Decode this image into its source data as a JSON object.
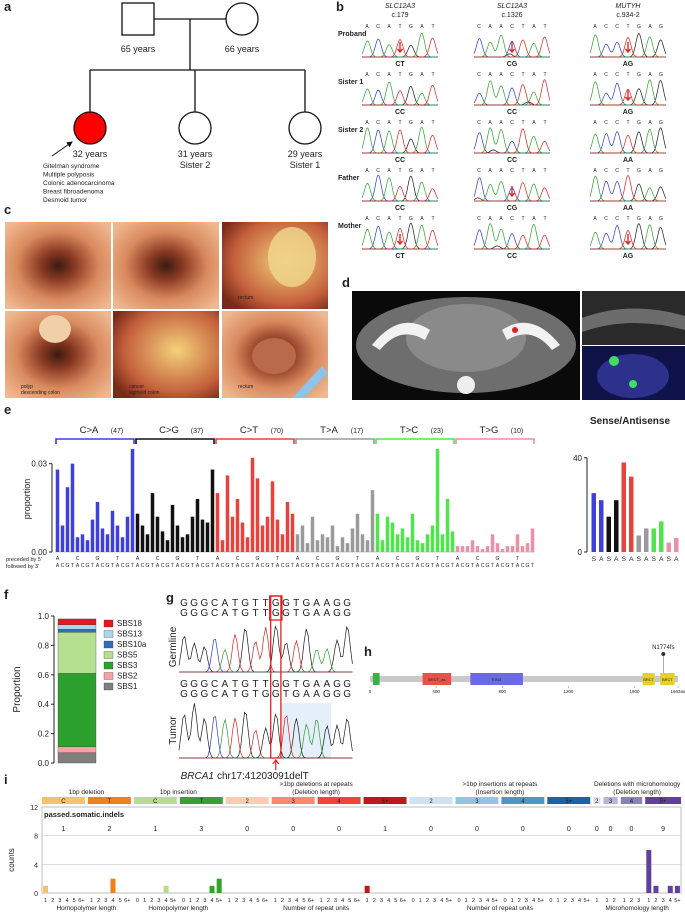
{
  "panel_labels": [
    "a",
    "b",
    "c",
    "d",
    "e",
    "f",
    "g",
    "h",
    "i"
  ],
  "pedigree": {
    "father": "65 years",
    "mother": "66 years",
    "proband": {
      "age": "32 years",
      "color": "#ff0000",
      "features": [
        "Gitelman syndrome",
        "Multiple polyposis",
        "Colonic adenocarcinoma",
        "Breast fibroadenoma",
        "Desmoid tumor"
      ]
    },
    "siblings": [
      {
        "age": "31 years",
        "name": "Sister 2"
      },
      {
        "age": "29 years",
        "name": "Sister 1"
      }
    ]
  },
  "base_colors": {
    "G": "#1a1a1a",
    "C": "#2a3bd6",
    "A": "#2e9e2e",
    "T": "#e02020"
  },
  "sanger": {
    "columns": [
      {
        "gene": "SLC12A3",
        "variant": "c.179",
        "sequence": "ACATGAT"
      },
      {
        "gene": "SLC12A3",
        "variant": "c.1326",
        "sequence": "CAACTAT"
      },
      {
        "gene": "MUTYH",
        "variant": "c.934-2",
        "sequence": "ACCTGAG"
      }
    ],
    "rows": [
      {
        "name": "Proband",
        "genotypes": [
          {
            "text": "CT",
            "color": "#e8241f"
          },
          {
            "text": "CG",
            "color": "#e8241f"
          },
          {
            "text": "AG",
            "color": "#e8241f"
          }
        ]
      },
      {
        "name": "Sister 1",
        "genotypes": [
          {
            "text": "CC",
            "color": "#111111"
          },
          {
            "text": "CC",
            "color": "#111111"
          },
          {
            "text": "AG",
            "color": "#e8241f"
          }
        ]
      },
      {
        "name": "Sister 2",
        "genotypes": [
          {
            "text": "CC",
            "color": "#111111"
          },
          {
            "text": "CC",
            "color": "#111111"
          },
          {
            "text": "AA",
            "color": "#111111"
          }
        ]
      },
      {
        "name": "Father",
        "genotypes": [
          {
            "text": "CC",
            "color": "#111111"
          },
          {
            "text": "CG",
            "color": "#e8241f"
          },
          {
            "text": "AA",
            "color": "#111111"
          }
        ]
      },
      {
        "name": "Mother",
        "genotypes": [
          {
            "text": "CT",
            "color": "#e8241f"
          },
          {
            "text": "CC",
            "color": "#111111"
          },
          {
            "text": "AG",
            "color": "#e8241f"
          }
        ]
      }
    ]
  },
  "endoscopy_captions": [
    [],
    [],
    [
      "rectum"
    ],
    [
      "polyp",
      "descending colon"
    ],
    [
      "cancer",
      "sigmoid colon"
    ],
    [
      "rectum"
    ]
  ],
  "chart_data": [
    {
      "type": "context_bar",
      "ylabel": "proportion",
      "ylim": [
        0,
        0.036
      ],
      "yticks": [
        {
          "value": 0,
          "label": "0.00"
        },
        {
          "value": 0.03,
          "label": "0.03"
        }
      ],
      "five_prime": [
        "A",
        "C",
        "G",
        "T"
      ],
      "three_prime": [
        "A",
        "C",
        "G",
        "T"
      ],
      "five_prime_label": "preceded by 5'",
      "three_prime_label": "followed by 3'",
      "groups": [
        {
          "name": "C>A",
          "count_label": "(47)",
          "color": "#3f3fdd",
          "values": [
            0.028,
            0.009,
            0.022,
            0.03,
            0.005,
            0.006,
            0.004,
            0.011,
            0.017,
            0.008,
            0.006,
            0.014,
            0.009,
            0.005,
            0.012,
            0.035
          ]
        },
        {
          "name": "C>G",
          "count_label": "(37)",
          "color": "#111111",
          "values": [
            0.013,
            0.009,
            0.006,
            0.02,
            0.012,
            0.007,
            0.004,
            0.016,
            0.009,
            0.005,
            0.006,
            0.012,
            0.018,
            0.011,
            0.01,
            0.028
          ]
        },
        {
          "name": "C>T",
          "count_label": "(70)",
          "color": "#e8423f",
          "values": [
            0.02,
            0.004,
            0.026,
            0.012,
            0.018,
            0.01,
            0.005,
            0.032,
            0.025,
            0.009,
            0.012,
            0.024,
            0.011,
            0.006,
            0.017,
            0.013
          ]
        },
        {
          "name": "T>A",
          "count_label": "(17)",
          "color": "#9a9a9a",
          "values": [
            0.006,
            0.009,
            0.003,
            0.012,
            0.004,
            0.006,
            0.005,
            0.009,
            0.002,
            0.005,
            0.003,
            0.008,
            0.013,
            0.006,
            0.004,
            0.021
          ]
        },
        {
          "name": "T>C",
          "count_label": "(23)",
          "color": "#4ee64a",
          "values": [
            0.013,
            0.004,
            0.012,
            0.01,
            0.006,
            0.008,
            0.005,
            0.013,
            0.004,
            0.003,
            0.006,
            0.009,
            0.035,
            0.006,
            0.018,
            0.007
          ]
        },
        {
          "name": "T>G",
          "count_label": "(10)",
          "color": "#ec8fa8",
          "values": [
            0.002,
            0.002,
            0.002,
            0.004,
            0.002,
            0.001,
            0.002,
            0.006,
            0.003,
            0.001,
            0.002,
            0.002,
            0.006,
            0.002,
            0.003,
            0.008
          ]
        }
      ]
    },
    {
      "type": "bar",
      "title": "Sense/Antisense",
      "ylim": [
        0,
        45
      ],
      "yticks": [
        0,
        40
      ],
      "categories": [
        "S",
        "A",
        "S",
        "A",
        "S",
        "A",
        "S",
        "A",
        "S",
        "A",
        "S",
        "A"
      ],
      "values": [
        25,
        22,
        15,
        22,
        38,
        32,
        7,
        10,
        10,
        13,
        4,
        6
      ],
      "colors": [
        "#3f3fdd",
        "#3f3fdd",
        "#111111",
        "#111111",
        "#e8423f",
        "#e8423f",
        "#9a9a9a",
        "#9a9a9a",
        "#4ee64a",
        "#4ee64a",
        "#ec8fa8",
        "#ec8fa8"
      ]
    },
    {
      "type": "stacked_bar",
      "ylabel": "Proportion",
      "ylim": [
        0,
        1
      ],
      "yticks": [
        {
          "value": 0,
          "label": "0.0"
        },
        0.2,
        0.4,
        0.6,
        0.8,
        {
          "value": 1,
          "label": "1.0"
        }
      ],
      "series": [
        {
          "name": "SBS1",
          "color": "#7f7f7f",
          "values": [
            0.07
          ]
        },
        {
          "name": "SBS2",
          "color": "#f4a3a3",
          "values": [
            0.04
          ]
        },
        {
          "name": "SBS3",
          "color": "#2ca02c",
          "values": [
            0.5
          ]
        },
        {
          "name": "SBS5",
          "color": "#b5e08f",
          "values": [
            0.28
          ]
        },
        {
          "name": "SBS10a",
          "color": "#2f6fb7",
          "values": [
            0.02
          ]
        },
        {
          "name": "SBS13",
          "color": "#a9d6ef",
          "values": [
            0.03
          ]
        },
        {
          "name": "SBS18",
          "color": "#e31a1c",
          "values": [
            0.04
          ]
        }
      ]
    },
    {
      "type": "indel",
      "subtitle": "passed.somatic.indels",
      "ylabel": "counts",
      "ylim": [
        0,
        12
      ],
      "yticks": [
        0,
        4,
        8,
        12
      ],
      "sections": [
        {
          "title": [
            "1bp deletion"
          ],
          "xlabel": "Homopolymer length",
          "groups": [
            {
              "name": "C",
              "color": "#fbbf6f",
              "total": 1,
              "xlabels": [
                "1",
                "2",
                "3",
                "4",
                "5",
                "6+"
              ],
              "values": [
                1,
                0,
                0,
                0,
                0,
                0
              ]
            },
            {
              "name": "T",
              "color": "#f07f1d",
              "total": 2,
              "xlabels": [
                "1",
                "2",
                "3",
                "4",
                "5",
                "6+"
              ],
              "values": [
                0,
                0,
                0,
                2,
                0,
                0
              ]
            }
          ]
        },
        {
          "title": [
            "1bp insertion"
          ],
          "xlabel": "Homopolymer length",
          "groups": [
            {
              "name": "C",
              "color": "#b9db8f",
              "total": 1,
              "xlabels": [
                "0",
                "1",
                "2",
                "3",
                "4",
                "5+"
              ],
              "values": [
                0,
                0,
                0,
                0,
                1,
                0
              ]
            },
            {
              "name": "T",
              "color": "#37a12f",
              "total": 3,
              "xlabels": [
                "0",
                "1",
                "2",
                "3",
                "4",
                "5+"
              ],
              "values": [
                0,
                0,
                0,
                0,
                1,
                2
              ]
            }
          ]
        },
        {
          "title": [
            ">1bp deletions at repeats",
            "(Deletion length)"
          ],
          "xlabel": "Number of repeat units",
          "groups": [
            {
              "name": "2",
              "color": "#fccbb5",
              "total": 0,
              "xlabels": [
                "1",
                "2",
                "3",
                "4",
                "5",
                "6+"
              ],
              "values": [
                0,
                0,
                0,
                0,
                0,
                0
              ]
            },
            {
              "name": "3",
              "color": "#fb8a6a",
              "total": 0,
              "xlabels": [
                "1",
                "2",
                "3",
                "4",
                "5",
                "6+"
              ],
              "values": [
                0,
                0,
                0,
                0,
                0,
                0
              ]
            },
            {
              "name": "4",
              "color": "#ef4533",
              "total": 0,
              "xlabels": [
                "1",
                "2",
                "3",
                "4",
                "5",
                "6+"
              ],
              "values": [
                0,
                0,
                0,
                0,
                0,
                0
              ]
            },
            {
              "name": "5+",
              "color": "#bc191a",
              "total": 1,
              "xlabels": [
                "1",
                "2",
                "3",
                "4",
                "5",
                "6+"
              ],
              "values": [
                1,
                0,
                0,
                0,
                0,
                0
              ]
            }
          ]
        },
        {
          "title": [
            ">1bp insertions at repeats",
            "(Insertion length)"
          ],
          "xlabel": "Number of repeat units",
          "groups": [
            {
              "name": "2",
              "color": "#d0e1f2",
              "total": 0,
              "xlabels": [
                "0",
                "1",
                "2",
                "3",
                "4",
                "5+"
              ],
              "values": [
                0,
                0,
                0,
                0,
                0,
                0
              ]
            },
            {
              "name": "3",
              "color": "#94c4df",
              "total": 0,
              "xlabels": [
                "0",
                "1",
                "2",
                "3",
                "4",
                "5+"
              ],
              "values": [
                0,
                0,
                0,
                0,
                0,
                0
              ]
            },
            {
              "name": "4",
              "color": "#4a97c9",
              "total": 0,
              "xlabels": [
                "0",
                "1",
                "2",
                "3",
                "4",
                "5+"
              ],
              "values": [
                0,
                0,
                0,
                0,
                0,
                0
              ]
            },
            {
              "name": "5+",
              "color": "#1764ab",
              "total": 0,
              "xlabels": [
                "0",
                "1",
                "2",
                "3",
                "4",
                "5+"
              ],
              "values": [
                0,
                0,
                0,
                0,
                0,
                0
              ]
            }
          ]
        },
        {
          "title": [
            "Deletions with microhomology",
            "(Deletion length)"
          ],
          "xlabel": "Microhomology length",
          "groups": [
            {
              "name": "2",
              "color": "#e2e2ef",
              "total": 0,
              "xlabels": [
                "1"
              ],
              "values": [
                0
              ]
            },
            {
              "name": "3",
              "color": "#b6b6d8",
              "total": 0,
              "xlabels": [
                "1",
                "2"
              ],
              "values": [
                0,
                0
              ]
            },
            {
              "name": "4",
              "color": "#8683bd",
              "total": 0,
              "xlabels": [
                "1",
                "2",
                "3"
              ],
              "values": [
                0,
                0,
                0
              ]
            },
            {
              "name": "5+",
              "color": "#61409b",
              "total": 9,
              "xlabels": [
                "1",
                "2",
                "3",
                "4",
                "5+"
              ],
              "values": [
                6,
                1,
                0,
                1,
                1
              ]
            }
          ]
        }
      ]
    }
  ],
  "brca1_sanger": {
    "rows": [
      {
        "label": "Germline",
        "sequences": [
          "GGGCATGTTGGTGAAGG",
          "GGGCATGTTGGTGAAGG"
        ]
      },
      {
        "label": "Tumor",
        "sequences": [
          "GGGCATGTTGGTGAAGG",
          "GGGCATGTGGTGAAGGG"
        ]
      }
    ],
    "highlight": 9,
    "gene": "BRCA1",
    "locus": "chr17:41203091delT"
  },
  "protein": {
    "length": 1863,
    "end_label": "1863aa",
    "ticks": [
      0,
      400,
      800,
      1200,
      1600
    ],
    "domains": [
      {
        "start": 17,
        "end": 58,
        "color": "#3cb043"
      },
      {
        "label": "BRCT_as",
        "start": 318,
        "end": 491,
        "color": "#e8504a"
      },
      {
        "label": "EIN3",
        "start": 607,
        "end": 925,
        "color": "#6a6ae8"
      },
      {
        "label": "BRCT",
        "start": 1649,
        "end": 1722,
        "color": "#e8d020"
      },
      {
        "label": "BRCT",
        "start": 1756,
        "end": 1842,
        "color": "#e8d020"
      }
    ],
    "mutation": {
      "label": "N1774fs",
      "position": 1774
    }
  }
}
